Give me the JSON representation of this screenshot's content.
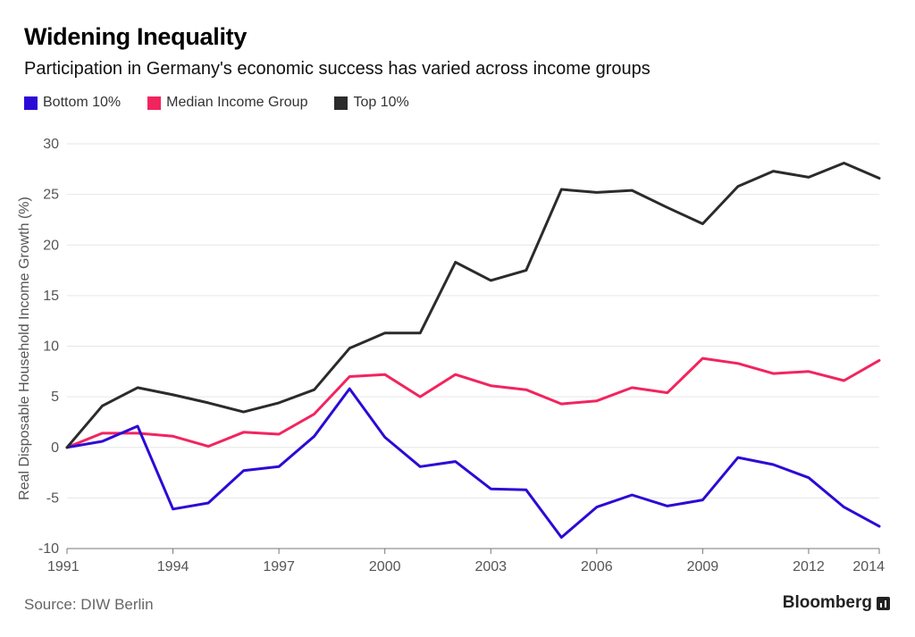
{
  "header": {
    "title": "Widening Inequality",
    "subtitle": "Participation in Germany's economic success has varied across income groups"
  },
  "footer": {
    "source": "Source: DIW Berlin",
    "brand": "Bloomberg",
    "brand_icon": "bloomberg-chart-icon"
  },
  "chart_data": {
    "type": "line",
    "title": "Widening Inequality",
    "subtitle": "Participation in Germany's economic success has varied across income groups",
    "xlabel": "",
    "ylabel": "Real Disposable Household Income Growth (%)",
    "x": [
      1991,
      1992,
      1993,
      1994,
      1995,
      1996,
      1997,
      1998,
      1999,
      2000,
      2001,
      2002,
      2003,
      2004,
      2005,
      2006,
      2007,
      2008,
      2009,
      2010,
      2011,
      2012,
      2013,
      2014
    ],
    "xlim": [
      1991,
      2014
    ],
    "ylim": [
      -10,
      30
    ],
    "xticks": [
      "1991",
      "1994",
      "1997",
      "2000",
      "2003",
      "2006",
      "2009",
      "2012",
      "2014"
    ],
    "yticks": [
      "30",
      "25",
      "20",
      "15",
      "10",
      "5",
      "0",
      "-5",
      "-10"
    ],
    "grid": true,
    "legend_position": "top-left",
    "series": [
      {
        "name": "Bottom 10%",
        "color": "#2c0ad6",
        "values": [
          0,
          0.6,
          2.1,
          -6.1,
          -5.5,
          -2.3,
          -1.9,
          1.1,
          5.8,
          1.0,
          -1.9,
          -1.4,
          -4.1,
          -4.2,
          -8.9,
          -5.9,
          -4.7,
          -5.8,
          -5.2,
          -1.0,
          -1.7,
          -3.0,
          -5.9,
          -7.8
        ]
      },
      {
        "name": "Median Income Group",
        "color": "#f2245f",
        "values": [
          0,
          1.4,
          1.4,
          1.1,
          0.1,
          1.5,
          1.3,
          3.3,
          7.0,
          7.2,
          5.0,
          7.2,
          6.1,
          5.7,
          4.3,
          4.6,
          5.9,
          5.4,
          8.8,
          8.3,
          7.3,
          7.5,
          6.6,
          8.6
        ]
      },
      {
        "name": "Top 10%",
        "color": "#2b2b2b",
        "values": [
          0,
          4.1,
          5.9,
          5.2,
          4.4,
          3.5,
          4.4,
          5.7,
          9.8,
          11.3,
          11.3,
          18.3,
          16.5,
          17.5,
          25.5,
          25.2,
          25.4,
          23.7,
          22.1,
          25.8,
          27.3,
          26.7,
          28.1,
          26.6
        ]
      }
    ]
  }
}
